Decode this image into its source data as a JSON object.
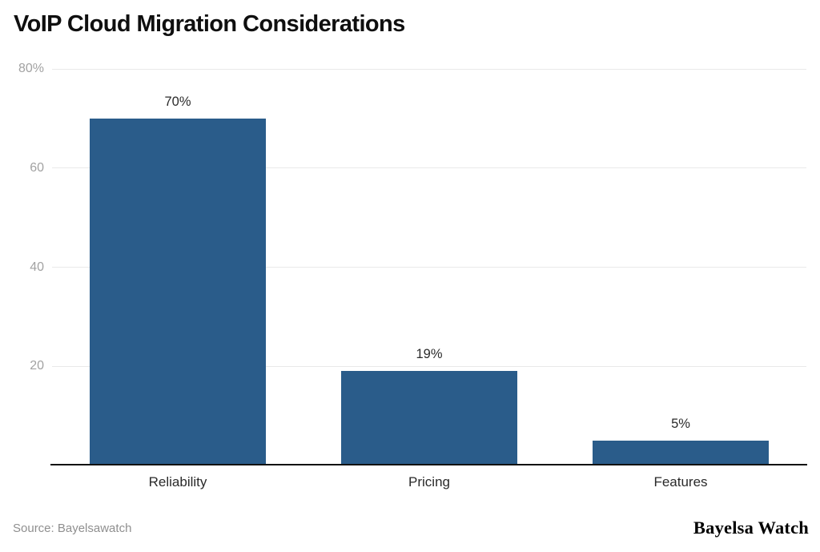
{
  "title": "VoIP Cloud Migration Considerations",
  "footer": {
    "source": "Source: Bayelsawatch",
    "brand": "Bayelsa Watch"
  },
  "colors": {
    "bar": "#2a5c8a",
    "grid": "#e9e9e9",
    "axis": "#111111",
    "tick_label": "#a2a2a2",
    "value_label": "#2b2b2b",
    "category_label": "#2a2a2a",
    "title": "#0f0f0f",
    "source": "#8f8f8f",
    "brand": "#000000"
  },
  "chart_data": {
    "type": "bar",
    "title": "VoIP Cloud Migration Considerations",
    "categories": [
      "Reliability",
      "Pricing",
      "Features"
    ],
    "values": [
      70,
      19,
      5
    ],
    "value_labels": [
      "70%",
      "19%",
      "5%"
    ],
    "xlabel": "",
    "ylabel": "",
    "ylim": [
      0,
      80
    ],
    "yticks": [
      {
        "value": 80,
        "label": "80%"
      },
      {
        "value": 60,
        "label": "60"
      },
      {
        "value": 40,
        "label": "40"
      },
      {
        "value": 20,
        "label": "20"
      }
    ],
    "grid": true,
    "legend": false,
    "bar_color": "#2a5c8a"
  }
}
